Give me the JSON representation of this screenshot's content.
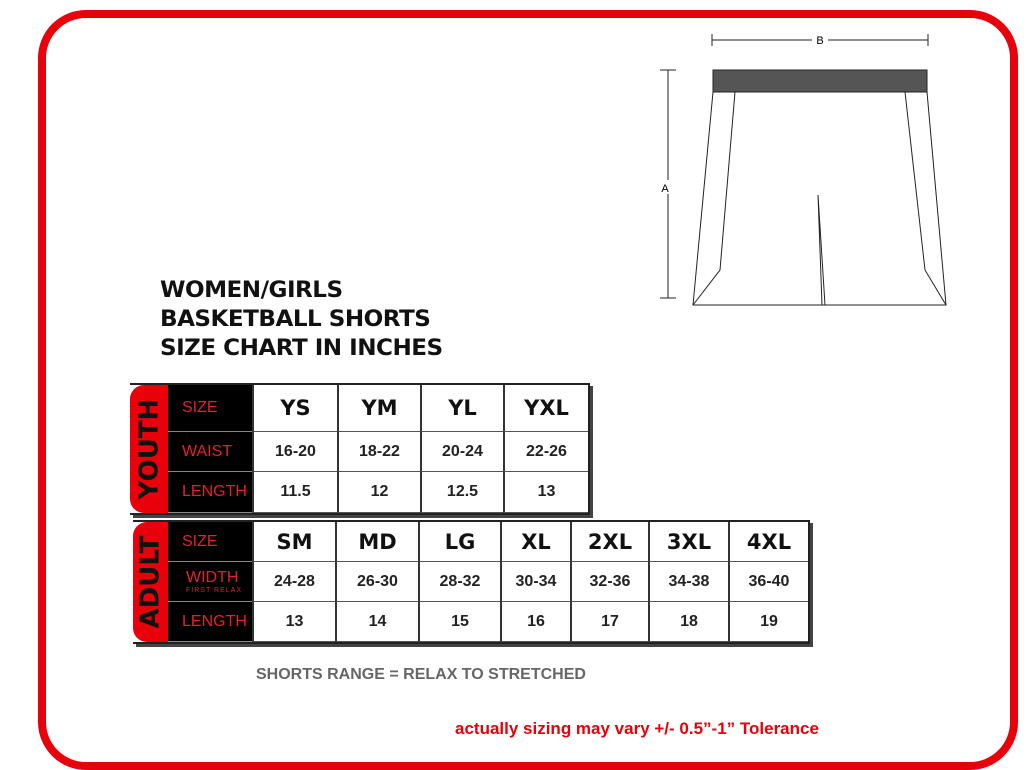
{
  "title": [
    "WOMEN/GIRLS",
    "BASKETBALL SHORTS",
    "SIZE CHART IN INCHES"
  ],
  "diagram": {
    "width_label": "B",
    "length_label": "A"
  },
  "youth": {
    "tab": "YOUTH",
    "row_labels": [
      "SIZE",
      "WAIST",
      "LENGTH"
    ],
    "sizes": [
      "YS",
      "YM",
      "YL",
      "YXL"
    ],
    "waist": [
      "16-20",
      "18-22",
      "20-24",
      "22-26"
    ],
    "length": [
      "11.5",
      "12",
      "12.5",
      "13"
    ]
  },
  "adult": {
    "tab": "ADULT",
    "row_labels": [
      "SIZE",
      "WIDTH",
      "LENGTH"
    ],
    "width_sub": "FIRST RELAX",
    "sizes": [
      "SM",
      "MD",
      "LG",
      "XL",
      "2XL",
      "3XL",
      "4XL"
    ],
    "width": [
      "24-28",
      "26-30",
      "28-32",
      "30-34",
      "32-36",
      "34-38",
      "36-40"
    ],
    "length": [
      "13",
      "14",
      "15",
      "16",
      "17",
      "18",
      "19"
    ]
  },
  "notes": {
    "range": "SHORTS RANGE = RELAX TO STRETCHED",
    "tolerance": "actually sizing may vary  +/- 0.5”-1” Tolerance"
  },
  "colors": {
    "accent": "#e8000b"
  }
}
